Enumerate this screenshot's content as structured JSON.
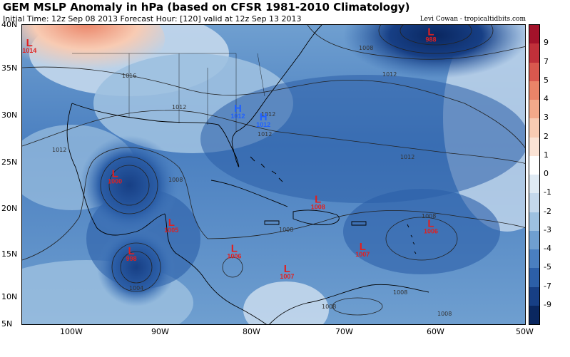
{
  "header": {
    "title": "GEM MSLP Anomaly in hPa (based on CFSR 1981-2010 Climatology)",
    "subtitle": "Initial Time: 12z Sep 08 2013 Forecast Hour: [120] valid at 12z Sep 13 2013",
    "credit": "Levi Cowan - tropicaltidbits.com"
  },
  "axes": {
    "lat_labels": [
      "40N",
      "35N",
      "30N",
      "25N",
      "20N",
      "15N",
      "10N",
      "5N"
    ],
    "lon_labels": [
      "100W",
      "90W",
      "80W",
      "70W",
      "60W",
      "50W"
    ]
  },
  "colorbar": {
    "labels": [
      "9",
      "7",
      "5",
      "4",
      "3",
      "2",
      "1",
      "0",
      "-1",
      "-2",
      "-3",
      "-4",
      "-5",
      "-7",
      "-9"
    ],
    "colors": [
      "#a3122a",
      "#c0303a",
      "#d9584e",
      "#ea8468",
      "#f3a98a",
      "#f8cbb3",
      "#fbe3d5",
      "#ffffff",
      "#dfeaf4",
      "#c4d8ec",
      "#9dc0e0",
      "#6f9fd0",
      "#4a7fc0",
      "#2c5fa8",
      "#173f85",
      "#0a2760"
    ]
  },
  "pressure_systems": [
    {
      "type": "L",
      "value": "1014",
      "lon": -104.6,
      "lat": 37.5
    },
    {
      "type": "L",
      "value": "988",
      "lon": -60.5,
      "lat": 38.8
    },
    {
      "type": "L",
      "value": "1000",
      "lon": -95.2,
      "lat": 22.3
    },
    {
      "type": "L",
      "value": "998",
      "lon": -93.4,
      "lat": 13.3
    },
    {
      "type": "L",
      "value": "1005",
      "lon": -89.0,
      "lat": 16.6
    },
    {
      "type": "L",
      "value": "1006",
      "lon": -82.1,
      "lat": 13.6
    },
    {
      "type": "L",
      "value": "1008",
      "lon": -72.9,
      "lat": 19.3
    },
    {
      "type": "L",
      "value": "1007",
      "lon": -76.3,
      "lat": 11.2
    },
    {
      "type": "L",
      "value": "1007",
      "lon": -68.0,
      "lat": 13.8
    },
    {
      "type": "L",
      "value": "1006",
      "lon": -60.5,
      "lat": 16.5
    },
    {
      "type": "H",
      "value": "1012",
      "lon": -81.7,
      "lat": 29.9
    },
    {
      "type": "H",
      "value": "1012",
      "lon": -78.9,
      "lat": 28.9
    }
  ],
  "contour_labels": [
    "1016",
    "1012",
    "1012",
    "1012",
    "1008",
    "1012",
    "1012",
    "1012",
    "1008",
    "1008",
    "1008",
    "1008",
    "1008",
    "1004",
    "1008",
    "1008"
  ]
}
